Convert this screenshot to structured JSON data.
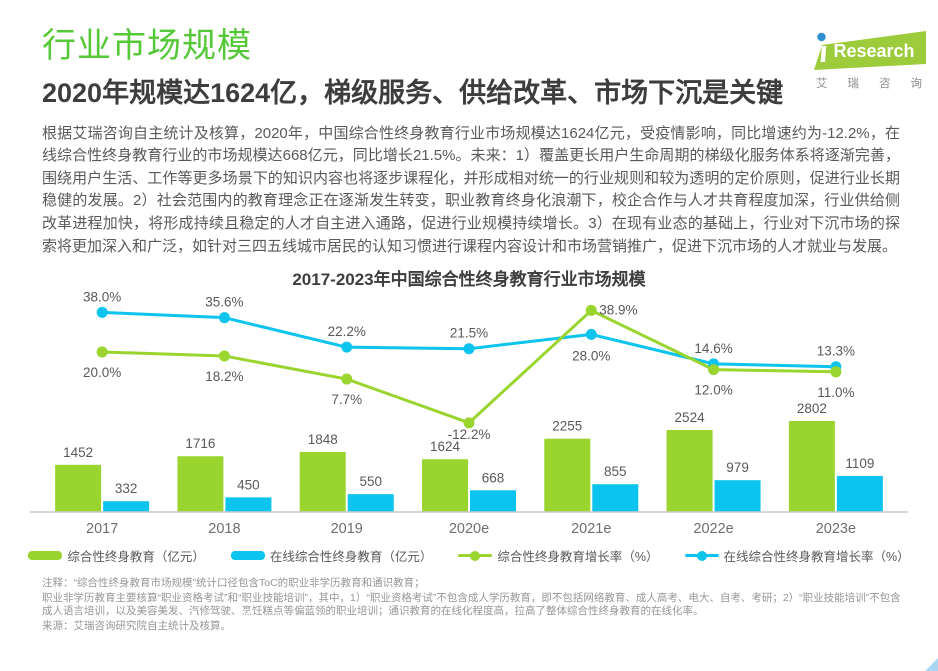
{
  "page": {
    "title": "行业市场规模",
    "subtitle": "2020年规模达1624亿，梯级服务、供给改革、市场下沉是关键",
    "body": "根据艾瑞咨询自主统计及核算，2020年，中国综合性终身教育行业市场规模达1624亿元，受疫情影响，同比增速约为-12.2%，在线综合性终身教育行业的市场规模达668亿元，同比增长21.5%。未来：1）覆盖更长用户生命周期的梯级化服务体系将逐渐完善，围绕用户生活、工作等更多场景下的知识内容也将逐步课程化，并形成相对统一的行业规则和较为透明的定价原则，促进行业长期稳健的发展。2）社会范围内的教育理念正在逐渐发生转变，职业教育终身化浪潮下，校企合作与人才共育程度加深，行业供给侧改革进程加快，将形成持续且稳定的人才自主进入通路，促进行业规模持续增长。3）在现有业态的基础上，行业对下沉市场的探索将更加深入和广泛，如针对三四五线城市居民的认知习惯进行课程内容设计和市场营销推广，促进下沉市场的人才就业与发展。"
  },
  "logo": {
    "brand": "Research",
    "caption_chars": [
      "艾",
      "瑞",
      "咨",
      "询"
    ],
    "green": "#9ccb3b",
    "dot_blue": "#2e8fd5"
  },
  "colors": {
    "title_green": "#55c837",
    "bar_green": "#9ad42f",
    "bar_blue": "#0cc4ee"
  },
  "chart_data": {
    "type": "bar",
    "subtype": "grouped-bars-with-growth-lines",
    "title": "2017-2023年中国综合性终身教育行业市场规模",
    "categories": [
      "2017",
      "2018",
      "2019",
      "2020e",
      "2021e",
      "2022e",
      "2023e"
    ],
    "bar_series": [
      {
        "name": "综合性终身教育（亿元）",
        "color": "#9ad42f",
        "values": [
          1452,
          1716,
          1848,
          1624,
          2255,
          2524,
          2802
        ]
      },
      {
        "name": "在线综合性终身教育（亿元）",
        "color": "#0cc4ee",
        "values": [
          332,
          450,
          550,
          668,
          855,
          979,
          1109
        ]
      }
    ],
    "line_series": [
      {
        "name": "综合性终身教育增长率（%）",
        "color": "#9ad42f",
        "values": [
          20.0,
          18.2,
          7.7,
          -12.2,
          38.9,
          12.0,
          11.0
        ],
        "label_placement": [
          "below",
          "below",
          "below",
          "below",
          "right",
          "below",
          "below"
        ],
        "label_dy": [
          4,
          4,
          4,
          -5,
          0,
          4,
          4
        ]
      },
      {
        "name": "在线综合性终身教育增长率（%）",
        "color": "#0cc4ee",
        "values": [
          38.0,
          35.6,
          22.2,
          21.5,
          28.0,
          14.6,
          13.3
        ],
        "label_placement": [
          "above",
          "above",
          "above",
          "above",
          "below",
          "above",
          "above"
        ],
        "label_dy": [
          0,
          0,
          0,
          0,
          5,
          0,
          0
        ]
      }
    ],
    "value_suffix_lines": "%",
    "grid": false,
    "y_axis_visible": false,
    "legend_position": "bottom",
    "xlabel": "",
    "ylabel": ""
  },
  "notes": {
    "line1": "注释：“综合性终身教育市场规模”统计口径包含ToC的职业非学历教育和通识教育；",
    "line2": "职业非学历教育主要核算“职业资格考试”和“职业技能培训”，其中，1）“职业资格考试”不包含成人学历教育，即不包括网络教育、成人高考、电大、自考、考研；2）“职业技能培训”不包含成人语言培训，以及美容美发、汽修驾驶、烹饪糕点等偏蓝领的职业培训；通识教育的在线化程度高，拉高了整体综合性终身教育的在线化率。",
    "source": "来源：艾瑞咨询研究院自主统计及核算。"
  }
}
